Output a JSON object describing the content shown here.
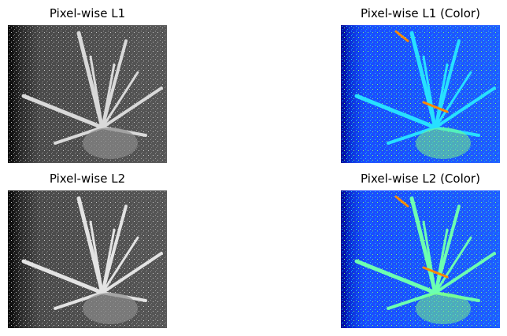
{
  "panels": [
    {
      "title": "Pixel-wise L1",
      "colormap": "gray"
    },
    {
      "title": "Pixel-wise L1 (Color)",
      "colormap": "jet"
    },
    {
      "title": "Pixel-wise L2",
      "colormap": "gray"
    },
    {
      "title": "Pixel-wise L2 (Color)",
      "colormap": "jet"
    }
  ],
  "colors": {
    "background": "#ffffff",
    "gray_dark": "#3a3a3a",
    "gray_light": "#e8e8e8",
    "jet_bg": "#1a4cff",
    "jet_mid": "#27c8ff",
    "jet_high": "#7dff7a",
    "jet_peak": "#ff8a00"
  }
}
